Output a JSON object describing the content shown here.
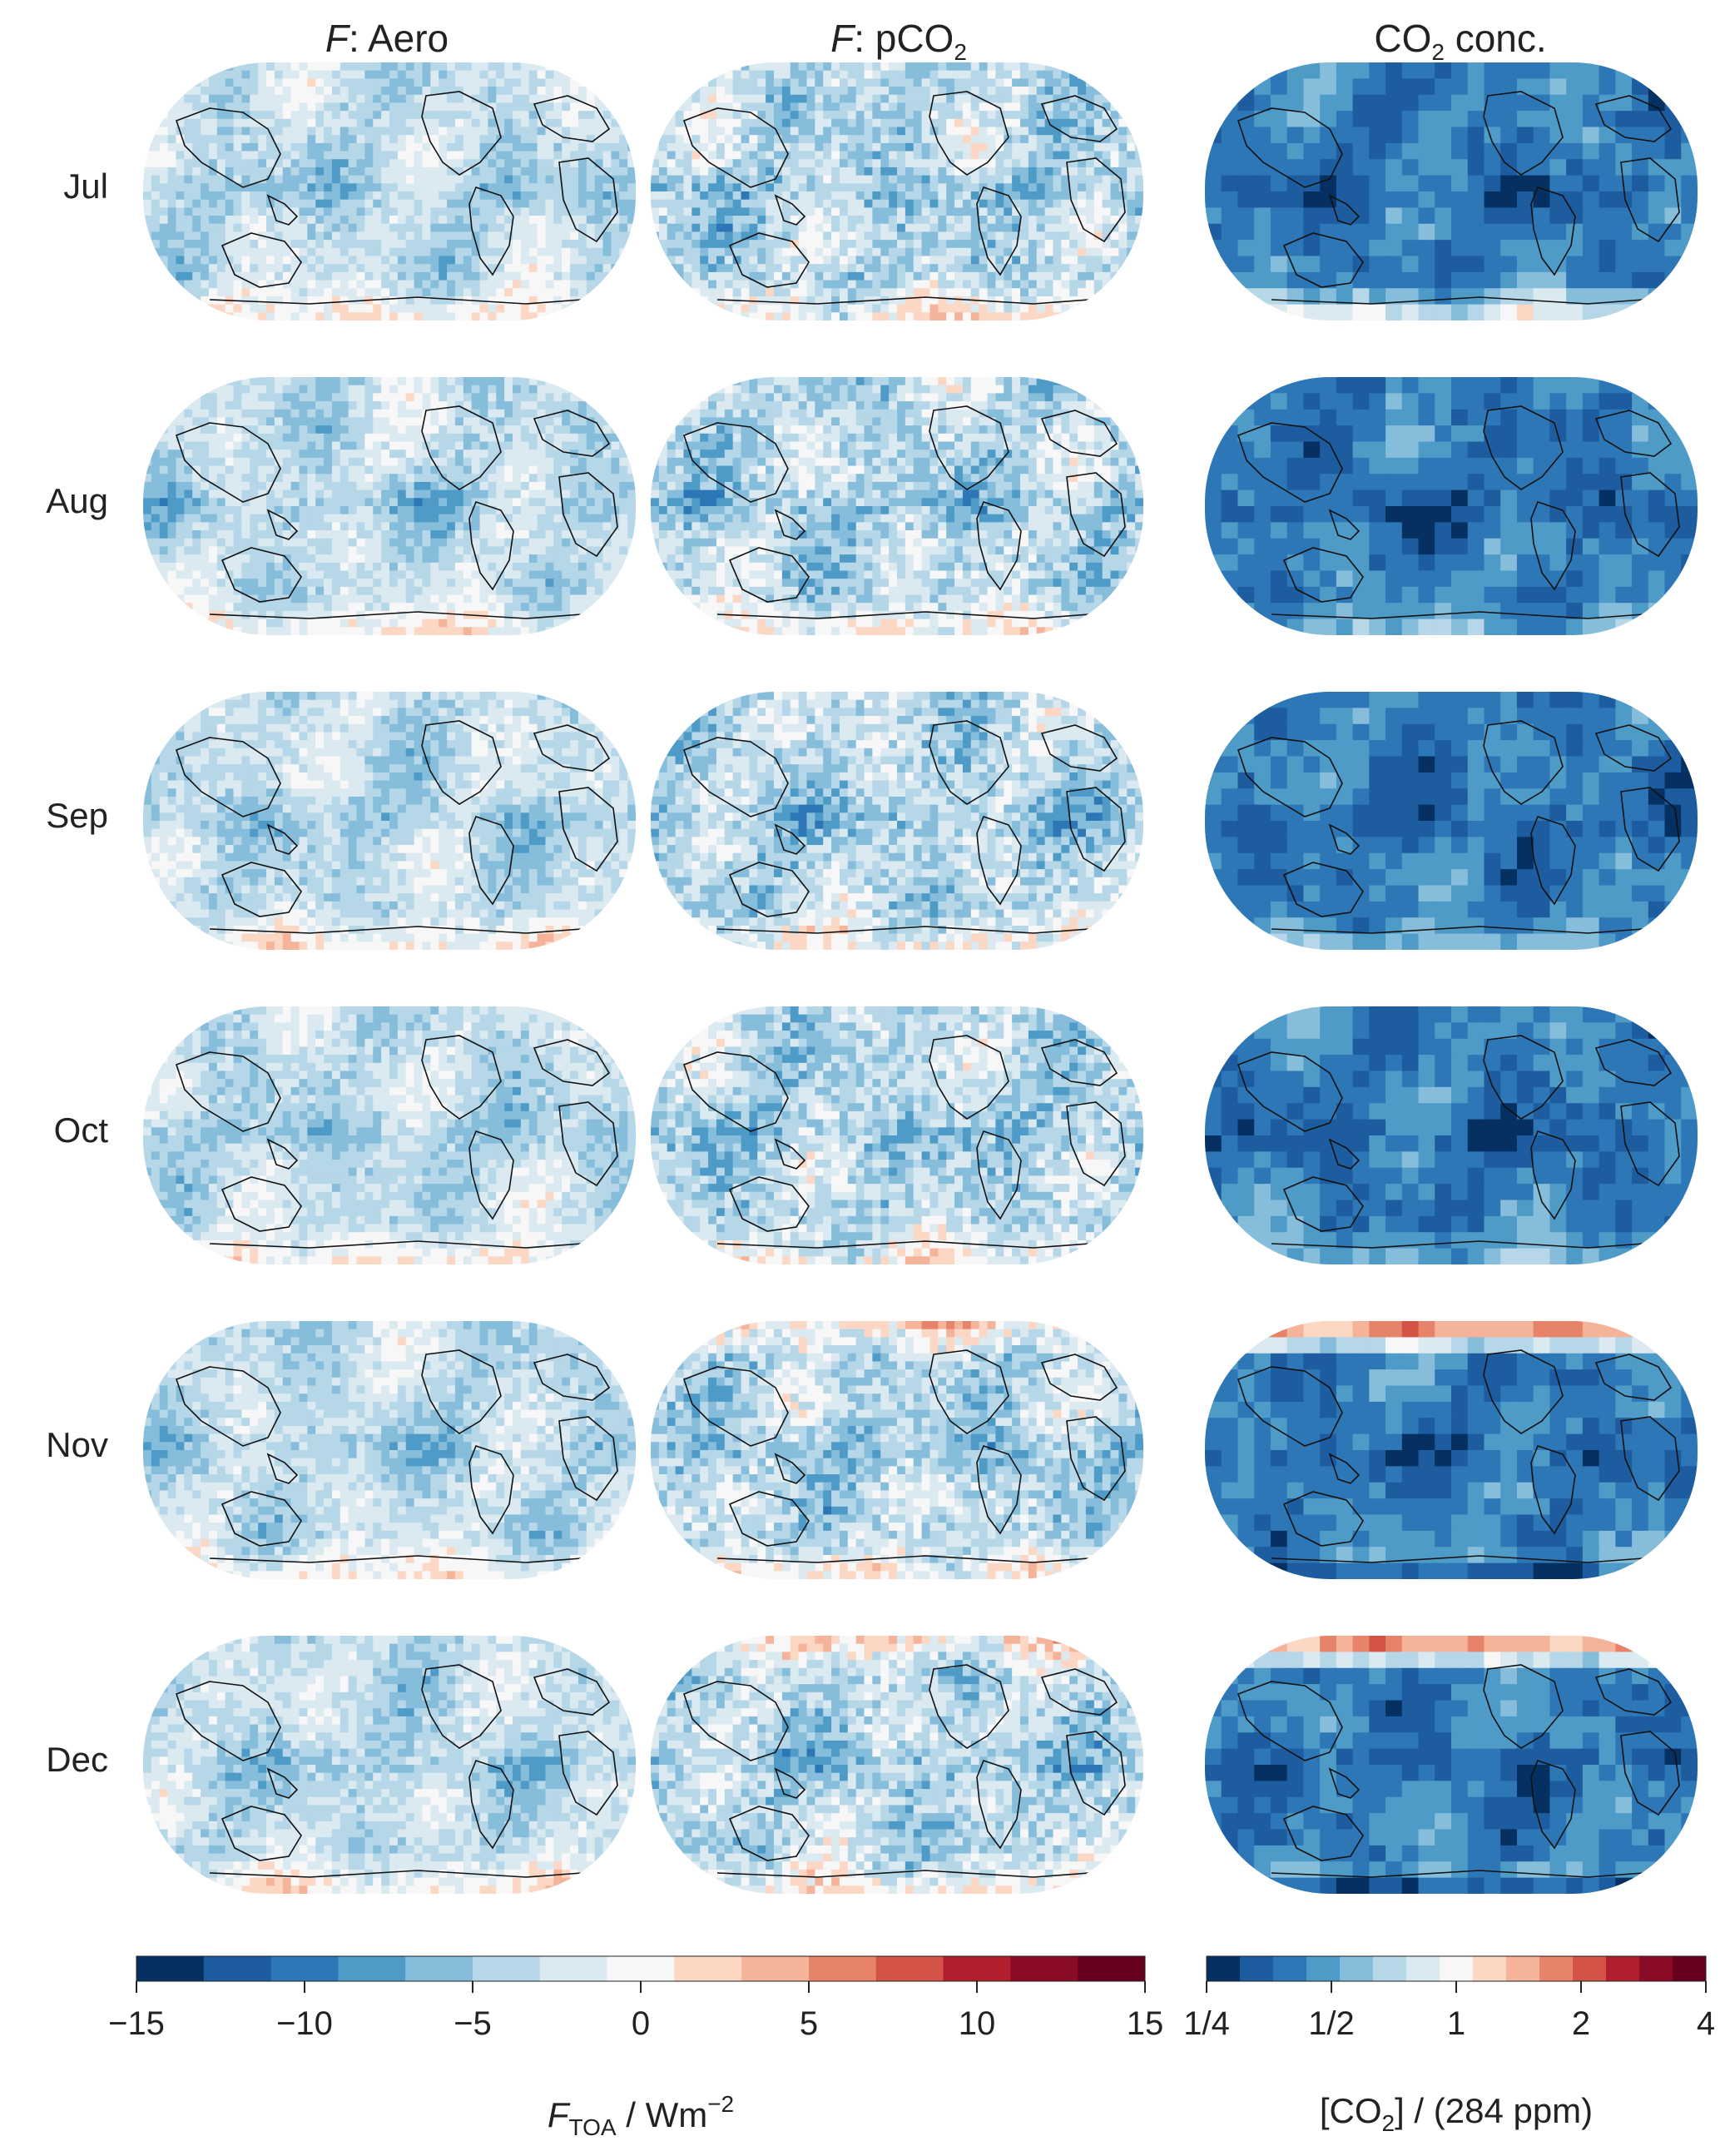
{
  "columns": [
    {
      "italic_prefix": "F",
      "rest": ": Aero",
      "sub": ""
    },
    {
      "italic_prefix": "F",
      "rest": ": pCO",
      "sub": "2"
    },
    {
      "italic_prefix": "",
      "rest": "CO",
      "sub": "2",
      "tail": " conc."
    }
  ],
  "rows": [
    "Jul",
    "Aug",
    "Sep",
    "Oct",
    "Nov",
    "Dec"
  ],
  "colors": {
    "diverging": [
      "#053061",
      "#1c5c9f",
      "#2d77b7",
      "#4f9bc8",
      "#86bddb",
      "#b6d7e8",
      "#dbe9f1",
      "#f7f7f7",
      "#fbd7c4",
      "#f5b39a",
      "#e68369",
      "#d35347",
      "#b31e2c",
      "#8a0b25",
      "#67001f"
    ],
    "coastline": "#111111"
  },
  "colorbar_left": {
    "ticks": [
      "−15",
      "−10",
      "−5",
      "0",
      "5",
      "10",
      "15"
    ],
    "label_var": "F",
    "label_sub": "TOA",
    "label_mid": " / Wm",
    "label_sup": "−2"
  },
  "colorbar_right": {
    "ticks": [
      "1/4",
      "1/2",
      "1",
      "2",
      "4"
    ],
    "label_pre": "[CO",
    "label_sub": "2",
    "label_post": "] / (284 ppm)"
  },
  "map_fields": {
    "note_scale": "values in colormap index 0-14 (7 = neutral)",
    "aero": {
      "base": 5.4,
      "noise": 0.9
    },
    "pco2": {
      "base": 5.2,
      "noise": 1.4
    },
    "conc": {
      "base": 2.2,
      "noise": 0.8
    }
  }
}
